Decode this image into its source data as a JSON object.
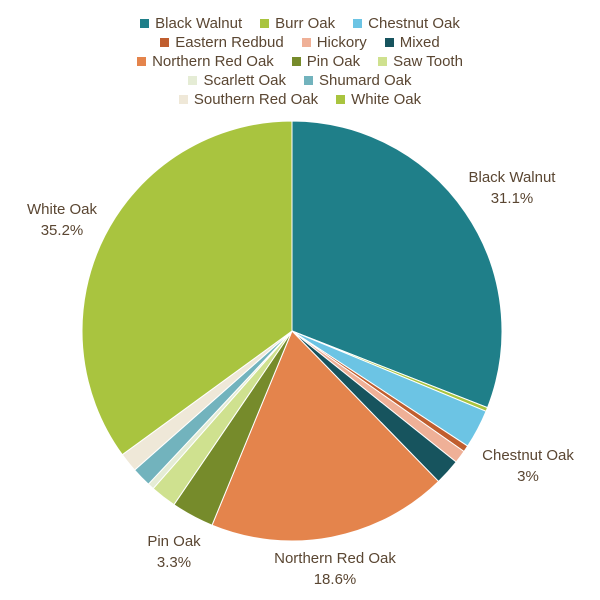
{
  "chart_data": {
    "type": "pie",
    "start_angle_deg": 0,
    "direction": "clockwise",
    "legend_placement": "top",
    "slices": [
      {
        "label": "Black Walnut",
        "value": 31.1,
        "color": "#1f7f89",
        "shown_label": "Black Walnut",
        "shown_value": "31.1%"
      },
      {
        "label": "Burr Oak",
        "value": 0.3,
        "color": "#a9c43f",
        "shown_label": "",
        "shown_value": ""
      },
      {
        "label": "Chestnut Oak",
        "value": 3.0,
        "color": "#6cc4e4",
        "shown_label": "Chestnut Oak",
        "shown_value": "3%"
      },
      {
        "label": "Eastern Redbud",
        "value": 0.5,
        "color": "#c05e2f",
        "shown_label": "",
        "shown_value": ""
      },
      {
        "label": "Hickory",
        "value": 1.0,
        "color": "#efb097",
        "shown_label": "",
        "shown_value": ""
      },
      {
        "label": "Mixed",
        "value": 2.0,
        "color": "#17545e",
        "shown_label": "",
        "shown_value": ""
      },
      {
        "label": "Northern Red Oak",
        "value": 18.6,
        "color": "#e4844c",
        "shown_label": "Northern Red Oak",
        "shown_value": "18.6%"
      },
      {
        "label": "Pin Oak",
        "value": 3.3,
        "color": "#768b2b",
        "shown_label": "Pin Oak",
        "shown_value": "3.3%"
      },
      {
        "label": "Saw Tooth",
        "value": 2.0,
        "color": "#cfe18f",
        "shown_label": "",
        "shown_value": ""
      },
      {
        "label": "Scarlett Oak",
        "value": 0.5,
        "color": "#e5ecd5",
        "shown_label": "",
        "shown_value": ""
      },
      {
        "label": "Shumard Oak",
        "value": 1.5,
        "color": "#72b3bd",
        "shown_label": "",
        "shown_value": ""
      },
      {
        "label": "Southern Red Oak",
        "value": 1.5,
        "color": "#efe8d8",
        "shown_label": "",
        "shown_value": ""
      },
      {
        "label": "White Oak",
        "value": 35.2,
        "color": "#a9c43f",
        "shown_label": "White Oak",
        "shown_value": "35.2%"
      }
    ],
    "legend_rows": [
      [
        "Black Walnut",
        "Burr Oak",
        "Chestnut Oak"
      ],
      [
        "Eastern Redbud",
        "Hickory",
        "Mixed"
      ],
      [
        "Northern Red Oak",
        "Pin Oak",
        "Saw Tooth"
      ],
      [
        "Scarlett Oak",
        "Shumard Oak"
      ],
      [
        "Southern Red Oak",
        "White Oak"
      ]
    ]
  },
  "colors": {
    "text": "#5a4632",
    "slice_border": "#ffffff"
  }
}
